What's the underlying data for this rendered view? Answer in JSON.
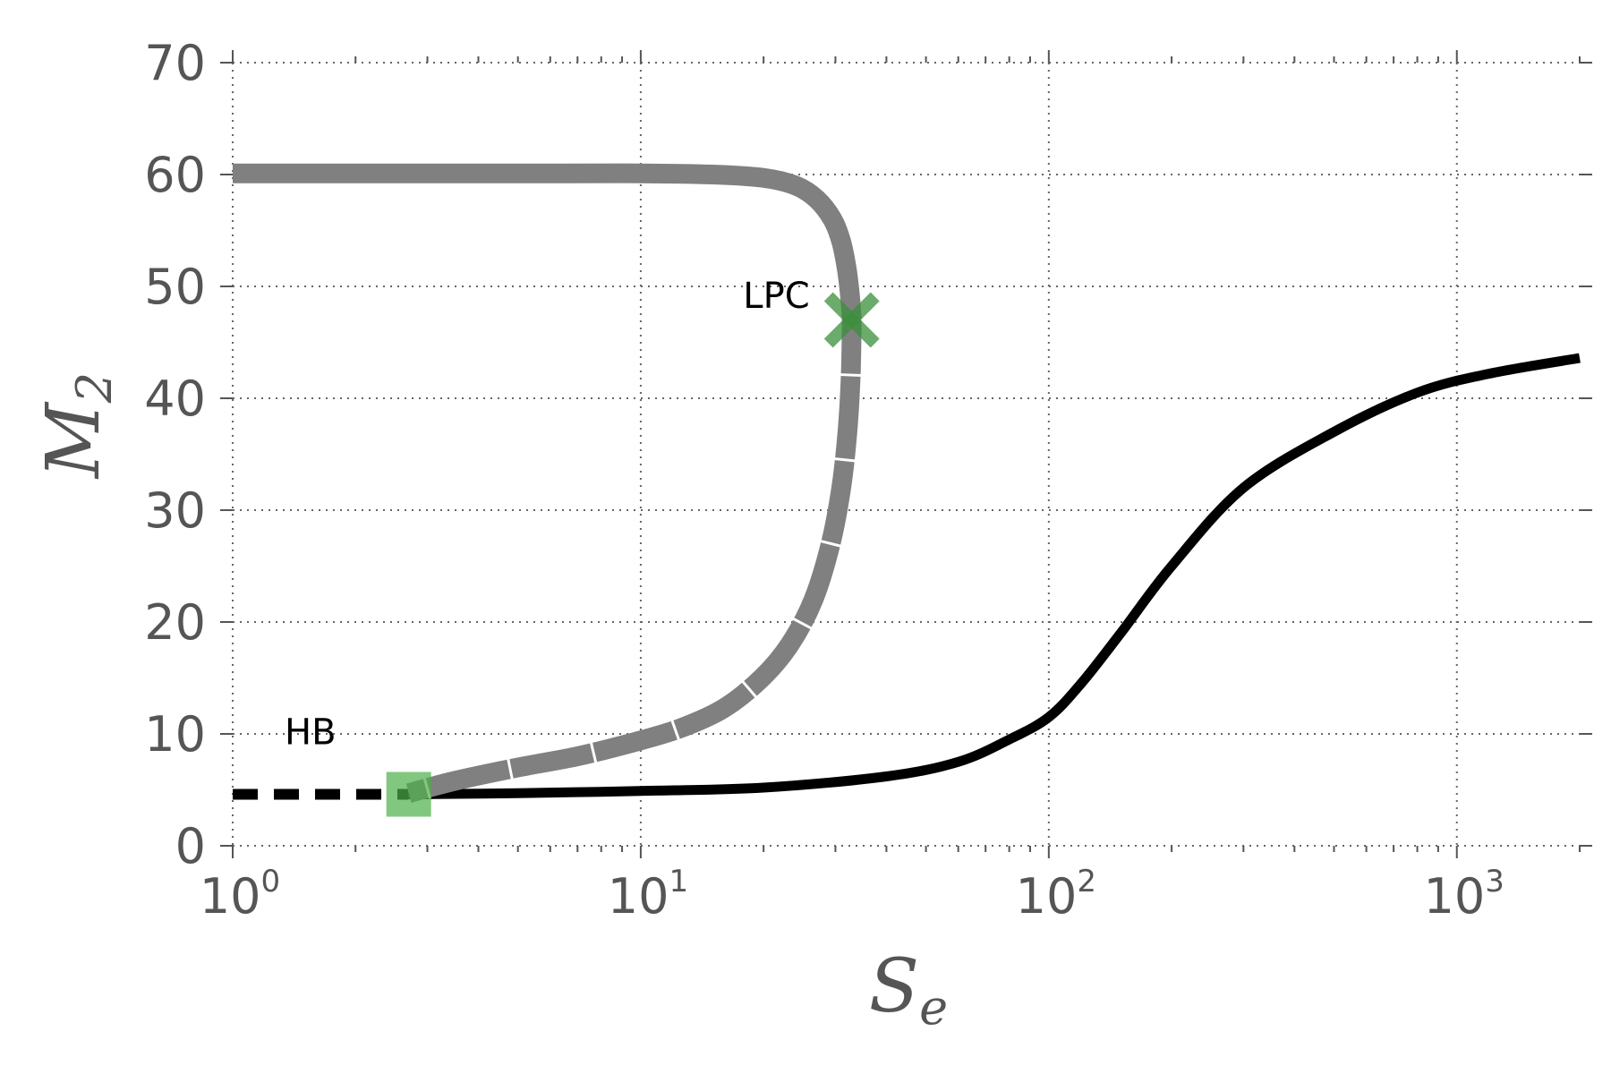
{
  "chart_data": {
    "type": "line",
    "title": "",
    "xlabel": {
      "base": "S",
      "sub": "e"
    },
    "ylabel": {
      "base": "M",
      "sub": "2"
    },
    "xscale": "log",
    "xlim": [
      1,
      2000
    ],
    "ylim": [
      0,
      70
    ],
    "grid": true,
    "legend": "none",
    "xticks": [
      {
        "value": 1,
        "base": "10",
        "exp": "0"
      },
      {
        "value": 10,
        "base": "10",
        "exp": "1"
      },
      {
        "value": 100,
        "base": "10",
        "exp": "2"
      },
      {
        "value": 1000,
        "base": "10",
        "exp": "3"
      }
    ],
    "yticks": [
      0,
      10,
      20,
      30,
      40,
      50,
      60,
      70
    ],
    "series": [
      {
        "style": "unstable-steady-state",
        "color": "#000000",
        "x": [
          1.0,
          2.7
        ],
        "y": [
          4.6,
          4.6
        ]
      },
      {
        "style": "stable-steady-state",
        "color": "#000000",
        "x": [
          2.7,
          5,
          10,
          20,
          40,
          60,
          80,
          100,
          120,
          150,
          200,
          300,
          500,
          800,
          1200,
          2000
        ],
        "y": [
          4.6,
          4.7,
          4.9,
          5.2,
          6.2,
          7.5,
          9.5,
          11.5,
          14.5,
          19,
          25,
          32,
          37,
          40.5,
          42.2,
          43.6
        ]
      },
      {
        "style": "stable-periodic-max",
        "color": "#808080",
        "x": [
          1.0,
          5,
          10,
          15,
          20,
          24,
          27,
          29.5,
          31,
          32,
          32.6,
          32.9
        ],
        "y": [
          60.1,
          60.1,
          60.1,
          60.0,
          59.7,
          59.0,
          57.8,
          56.0,
          54.0,
          51.5,
          49.0,
          47.0
        ]
      },
      {
        "style": "unstable-periodic-max",
        "color": "#808080",
        "x": [
          32.9,
          32.7,
          32.1,
          31.0,
          29.2,
          26.5,
          23.2,
          19.8,
          16.0,
          12.5,
          9.5,
          7.0,
          5.0,
          3.5,
          2.7
        ],
        "y": [
          47.0,
          42.0,
          37.0,
          32.0,
          27.0,
          22.0,
          18.0,
          15.0,
          12.3,
          10.5,
          9.2,
          8.0,
          7.0,
          5.8,
          4.7
        ]
      }
    ],
    "markers": [
      {
        "label": "HB",
        "shape": "square",
        "color": "#4daf4a",
        "x": 2.7,
        "y": 4.6
      },
      {
        "label": "LPC",
        "shape": "x",
        "color": "#3a8f3a",
        "x": 32.9,
        "y": 47.0
      }
    ],
    "annotations": [
      {
        "text": "HB",
        "x": 1.55,
        "y": 10.2
      },
      {
        "text": "LPC",
        "x": 21.5,
        "y": 49.2
      }
    ]
  }
}
